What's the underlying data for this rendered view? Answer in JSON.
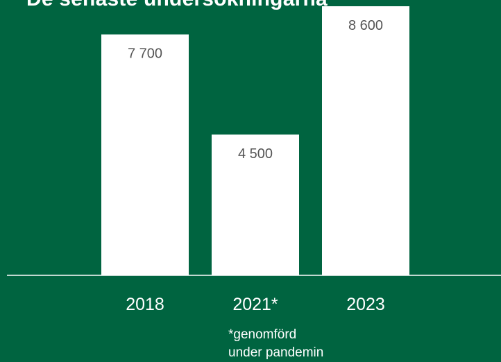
{
  "chart_data": {
    "type": "bar",
    "title": "De senaste undersökningarna",
    "categories": [
      "2018",
      "2021*",
      "2023"
    ],
    "values": [
      7700,
      4500,
      8600
    ],
    "value_labels": [
      "7 700",
      "4 500",
      "8 600"
    ],
    "xlabel": "",
    "ylabel": "",
    "ylim": [
      0,
      8600
    ],
    "grid": false,
    "legend": "none",
    "colors": {
      "background": "#006440",
      "bar": "#ffffff",
      "value_label": "#555555",
      "axis_line": "#ffffff",
      "text": "#ffffff"
    }
  },
  "footnote": {
    "line1": "*genomförd",
    "line2": "under pandemin"
  }
}
